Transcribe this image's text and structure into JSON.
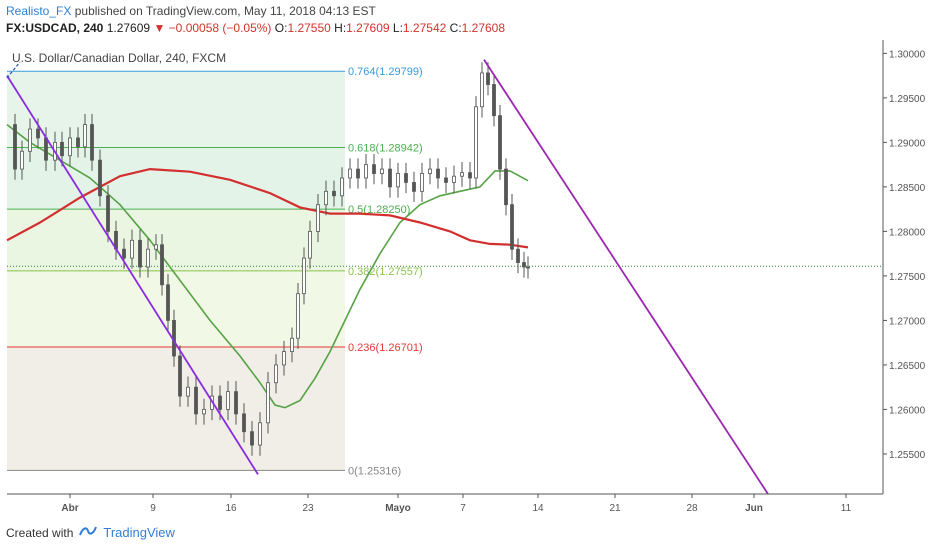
{
  "header": {
    "author": "Realisto_FX",
    "published_text": "published on TradingView.com, May 11, 2018 04:13 EST",
    "symbol": "FX:USDCAD, 240",
    "last": "1.27609",
    "change": "−0.00058 (−0.05%)",
    "o_label": "O:",
    "o_value": "1.27550",
    "h_label": "H:",
    "h_value": "1.27609",
    "l_label": "L:",
    "l_value": "1.27542",
    "c_label": "C:",
    "c_value": "1.27608"
  },
  "chart_data": {
    "type": "line",
    "title": "U.S. Dollar/Canadian Dollar, 240, FXCM",
    "x_ticks": [
      "Abr",
      "9",
      "16",
      "23",
      "Mayo",
      "7",
      "14",
      "21",
      "28",
      "Jun",
      "11"
    ],
    "y_ticks": [
      "1.30000",
      "1.29500",
      "1.29000",
      "1.28500",
      "1.28000",
      "1.27500",
      "1.27000",
      "1.26500",
      "1.26000",
      "1.25500"
    ],
    "ylim": [
      1.2505,
      1.3015
    ],
    "current_price": 1.27609,
    "fib_levels": [
      {
        "label": "0.764(1.29799)",
        "value": 1.29799,
        "color": "#3a9ad9"
      },
      {
        "label": "0.618(1.28942)",
        "value": 1.28942,
        "color": "#4caf50"
      },
      {
        "label": "0.5(1.28250)",
        "value": 1.2825,
        "color": "#4caf50"
      },
      {
        "label": "0.382(1.27557)",
        "value": 1.27557,
        "color": "#8bc34a"
      },
      {
        "label": "0.236(1.26701)",
        "value": 1.26701,
        "color": "#e53935"
      },
      {
        "label": "0(1.25316)",
        "value": 1.25316,
        "color": "#888888"
      }
    ],
    "series": [
      {
        "color": "#56a245",
        "points": [
          [
            7,
            1.292
          ],
          [
            30,
            1.29
          ],
          [
            60,
            1.288
          ],
          [
            90,
            1.286
          ],
          [
            120,
            1.283
          ],
          [
            150,
            1.279
          ],
          [
            180,
            1.2745
          ],
          [
            210,
            1.27
          ],
          [
            240,
            1.266
          ],
          [
            260,
            1.263
          ],
          [
            275,
            1.2605
          ],
          [
            285,
            1.2602
          ],
          [
            300,
            1.261
          ],
          [
            315,
            1.2635
          ],
          [
            330,
            1.2665
          ],
          [
            345,
            1.27
          ],
          [
            360,
            1.2735
          ],
          [
            380,
            1.2775
          ],
          [
            400,
            1.281
          ],
          [
            420,
            1.283
          ],
          [
            440,
            1.284
          ],
          [
            460,
            1.2845
          ],
          [
            480,
            1.285
          ],
          [
            495,
            1.2868
          ],
          [
            510,
            1.2868
          ],
          [
            528,
            1.2857
          ]
        ]
      },
      {
        "color": "#d32f2f",
        "points": [
          [
            7,
            1.279
          ],
          [
            40,
            1.281
          ],
          [
            80,
            1.2838
          ],
          [
            120,
            1.2862
          ],
          [
            150,
            1.287
          ],
          [
            190,
            1.2867
          ],
          [
            230,
            1.2858
          ],
          [
            270,
            1.2843
          ],
          [
            300,
            1.2827
          ],
          [
            330,
            1.282
          ],
          [
            360,
            1.282
          ],
          [
            390,
            1.2818
          ],
          [
            420,
            1.281
          ],
          [
            450,
            1.28
          ],
          [
            470,
            1.279
          ],
          [
            490,
            1.2786
          ],
          [
            510,
            1.2785
          ],
          [
            528,
            1.2782
          ]
        ]
      }
    ],
    "price_path": [
      [
        7,
        1.292
      ],
      [
        15,
        1.287
      ],
      [
        22,
        1.289
      ],
      [
        30,
        1.2915
      ],
      [
        38,
        1.2905
      ],
      [
        46,
        1.288
      ],
      [
        55,
        1.29
      ],
      [
        62,
        1.2885
      ],
      [
        70,
        1.2905
      ],
      [
        78,
        1.2895
      ],
      [
        85,
        1.292
      ],
      [
        92,
        1.288
      ],
      [
        100,
        1.284
      ],
      [
        108,
        1.28
      ],
      [
        116,
        1.278
      ],
      [
        124,
        1.277
      ],
      [
        132,
        1.279
      ],
      [
        140,
        1.276
      ],
      [
        148,
        1.278
      ],
      [
        156,
        1.2785
      ],
      [
        162,
        1.274
      ],
      [
        168,
        1.27
      ],
      [
        174,
        1.266
      ],
      [
        180,
        1.2615
      ],
      [
        188,
        1.2625
      ],
      [
        196,
        1.2595
      ],
      [
        204,
        1.26
      ],
      [
        212,
        1.2615
      ],
      [
        220,
        1.26
      ],
      [
        228,
        1.262
      ],
      [
        236,
        1.2595
      ],
      [
        244,
        1.2575
      ],
      [
        252,
        1.256
      ],
      [
        260,
        1.2585
      ],
      [
        268,
        1.263
      ],
      [
        276,
        1.265
      ],
      [
        284,
        1.2665
      ],
      [
        292,
        1.268
      ],
      [
        298,
        1.273
      ],
      [
        304,
        1.277
      ],
      [
        310,
        1.28
      ],
      [
        318,
        1.283
      ],
      [
        326,
        1.2845
      ],
      [
        334,
        1.284
      ],
      [
        342,
        1.286
      ],
      [
        350,
        1.287
      ],
      [
        358,
        1.286
      ],
      [
        366,
        1.2875
      ],
      [
        374,
        1.2865
      ],
      [
        382,
        1.287
      ],
      [
        390,
        1.285
      ],
      [
        398,
        1.2865
      ],
      [
        406,
        1.2855
      ],
      [
        414,
        1.2845
      ],
      [
        422,
        1.2865
      ],
      [
        430,
        1.287
      ],
      [
        438,
        1.286
      ],
      [
        446,
        1.2855
      ],
      [
        454,
        1.2862
      ],
      [
        462,
        1.2866
      ],
      [
        470,
        1.286
      ],
      [
        476,
        1.294
      ],
      [
        482,
        1.2978
      ],
      [
        488,
        1.2965
      ],
      [
        494,
        1.293
      ],
      [
        500,
        1.287
      ],
      [
        506,
        1.283
      ],
      [
        512,
        1.278
      ],
      [
        518,
        1.2765
      ],
      [
        524,
        1.276
      ],
      [
        528,
        1.2759
      ]
    ],
    "trendlines": [
      {
        "from": [
          7,
          1.2975
        ],
        "to": [
          258,
          1.2527
        ],
        "color": "#8a2be2"
      },
      {
        "from": [
          484,
          1.2993
        ],
        "to": [
          768,
          1.2505
        ],
        "color": "#9c27b0"
      }
    ],
    "fib_zones": [
      {
        "from": 1.29799,
        "to": 1.28942,
        "color": "#e6f4ea"
      },
      {
        "from": 1.28942,
        "to": 1.2825,
        "color": "#e3f3e8"
      },
      {
        "from": 1.2825,
        "to": 1.27557,
        "color": "#eaf6e2"
      },
      {
        "from": 1.27557,
        "to": 1.26701,
        "color": "#f1f8e6"
      },
      {
        "from": 1.26701,
        "to": 1.25316,
        "color": "#f0eee6"
      }
    ]
  },
  "footer": {
    "created_with": "Created with",
    "brand": "TradingView"
  }
}
